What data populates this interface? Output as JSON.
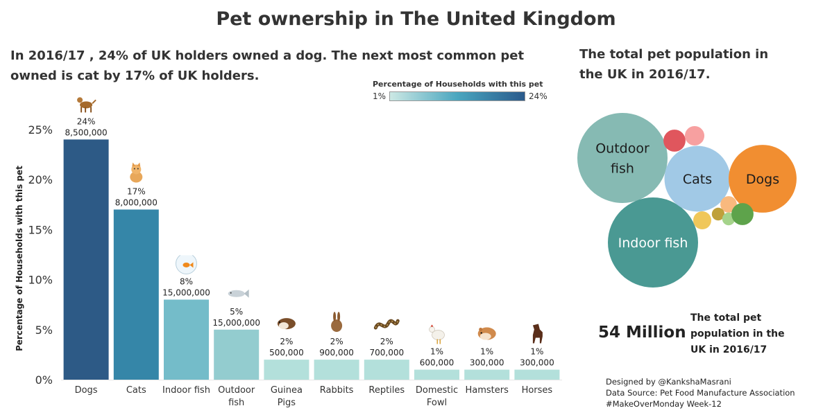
{
  "title": "Pet ownership in The United Kingdom",
  "subtitle_left": "In 2016/17 , 24% of UK holders owned a dog. The next most common pet owned is cat by 17% of UK holders.",
  "subtitle_right": "The total pet population in the UK in 2016/17.",
  "legend": {
    "title": "Percentage of Households with this pet",
    "min_label": "1%",
    "max_label": "24%",
    "colors": [
      "#cce8e4",
      "#4aa6bf",
      "#2a5a8c"
    ]
  },
  "chart_data": [
    {
      "type": "bar",
      "ylabel": "Percentage of Households with this pet",
      "ylim": [
        0,
        27
      ],
      "yticks": [
        0,
        5,
        10,
        15,
        20,
        25
      ],
      "ytick_labels": [
        "0%",
        "5%",
        "10%",
        "15%",
        "20%",
        "25%"
      ],
      "categories": [
        "Dogs",
        "Cats",
        "Indoor fish",
        "Outdoor fish",
        "Guinea Pigs",
        "Rabbits",
        "Reptiles",
        "Domestic Fowl",
        "Hamsters",
        "Horses"
      ],
      "category_lines": [
        [
          "Dogs"
        ],
        [
          "Cats"
        ],
        [
          "Indoor fish"
        ],
        [
          "Outdoor",
          "fish"
        ],
        [
          "Guinea",
          "Pigs"
        ],
        [
          "Rabbits"
        ],
        [
          "Reptiles"
        ],
        [
          "Domestic",
          "Fowl"
        ],
        [
          "Hamsters"
        ],
        [
          "Horses"
        ]
      ],
      "values": [
        24,
        17,
        8,
        5,
        2,
        2,
        2,
        1,
        1,
        1
      ],
      "percent_labels": [
        "24%",
        "17%",
        "8%",
        "5%",
        "2%",
        "2%",
        "2%",
        "1%",
        "1%",
        "1%"
      ],
      "population_labels": [
        "8,500,000",
        "8,000,000",
        "15,000,000",
        "15,000,000",
        "500,000",
        "900,000",
        "700,000",
        "600,000",
        "300,000",
        "300,000"
      ],
      "icons": [
        "dog-icon",
        "cat-icon",
        "goldfish-bowl-icon",
        "fish-icon",
        "guinea-pig-icon",
        "rabbit-icon",
        "snake-icon",
        "chicken-icon",
        "hamster-icon",
        "horse-icon"
      ],
      "colors": [
        "#2d5a86",
        "#3586a8",
        "#74bcc9",
        "#93cccf",
        "#b3e0db",
        "#b3e0db",
        "#b3e0db",
        "#b3e0db",
        "#b3e0db",
        "#b3e0db"
      ],
      "grid": false
    },
    {
      "type": "bubble",
      "items": [
        {
          "label": [
            "Outdoor",
            "fish"
          ],
          "value": 15000000,
          "color": "#86bab3"
        },
        {
          "label": [
            "Indoor fish"
          ],
          "value": 15000000,
          "color": "#4a9993"
        },
        {
          "label": [
            "Cats"
          ],
          "value": 8000000,
          "color": "#a1c9e6"
        },
        {
          "label": [
            "Dogs"
          ],
          "value": 8500000,
          "color": "#f18e31"
        },
        {
          "label": [],
          "value": 900000,
          "color": "#e0565d"
        },
        {
          "label": [],
          "value": 700000,
          "color": "#f7a0a0"
        },
        {
          "label": [],
          "value": 600000,
          "color": "#f0c75a"
        },
        {
          "label": [],
          "value": 500000,
          "color": "#f9b97e"
        },
        {
          "label": [],
          "value": 300000,
          "color": "#bfa03a"
        },
        {
          "label": [],
          "value": 300000,
          "color": "#a5d38b"
        },
        {
          "label": [],
          "value": 900000,
          "color": "#5ea34b"
        }
      ]
    }
  ],
  "total": {
    "number": "54 Million",
    "label": "The total pet population in the UK in 2016/17"
  },
  "credits": [
    "Designed by @KankshaMasrani",
    "Data Source: Pet Food Manufacture Association",
    "#MakeOverMonday Week-12"
  ]
}
